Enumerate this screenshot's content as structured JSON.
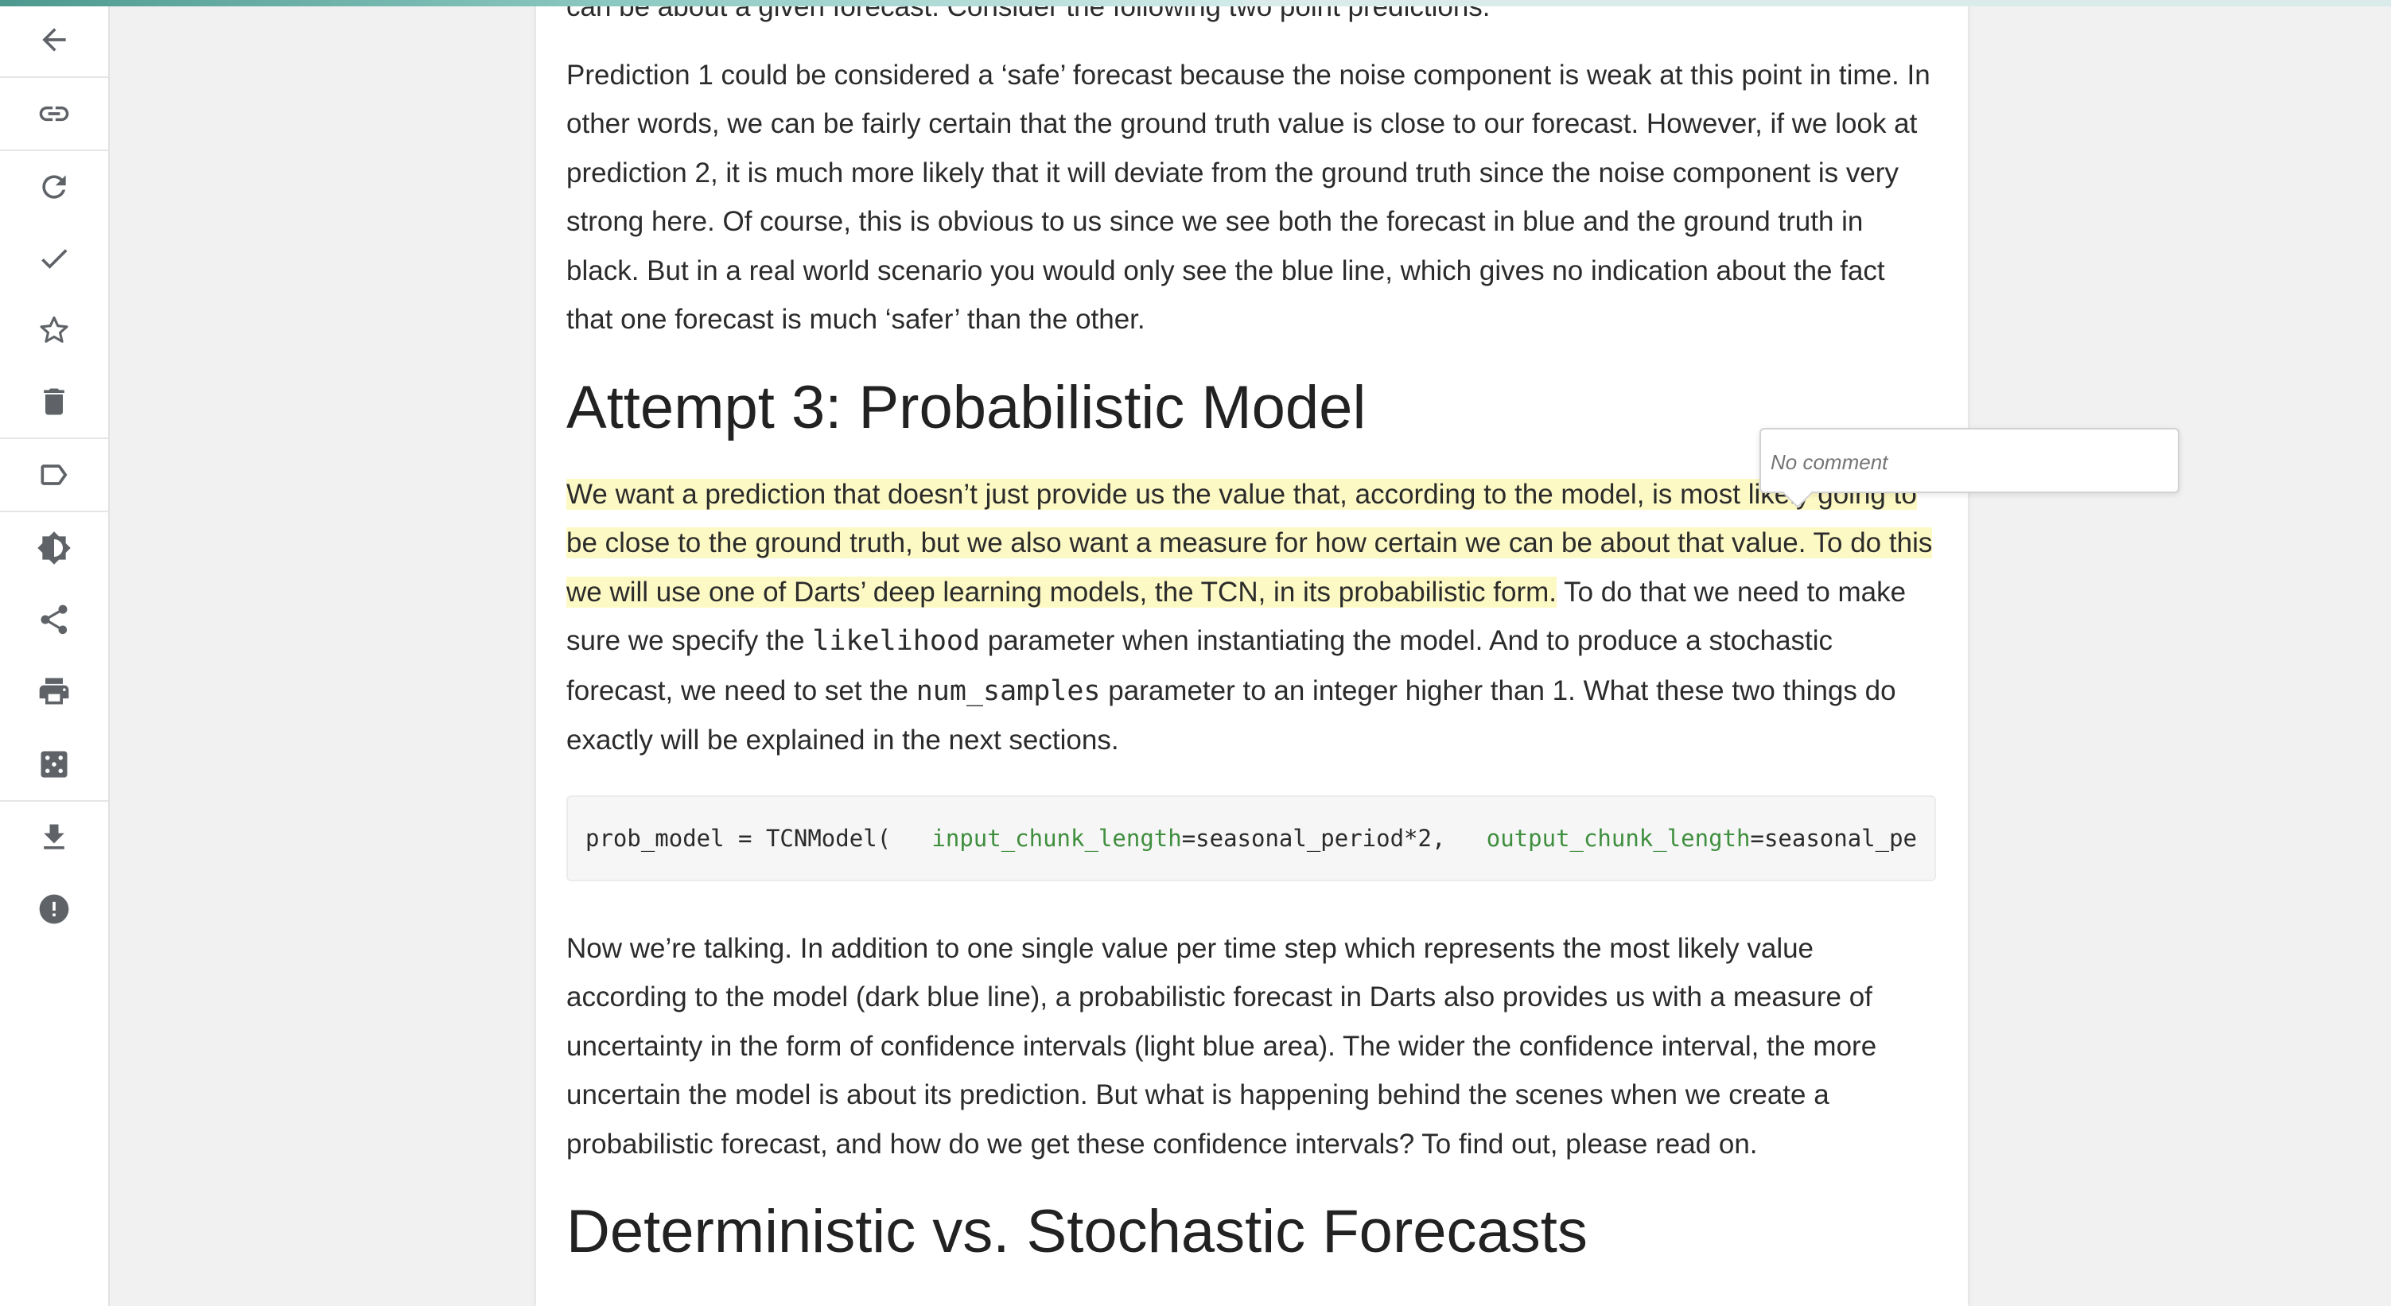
{
  "reading_progress": 0.52,
  "colors": {
    "highlight": "#fdf9c4",
    "code_keyword": "#3f8f3f",
    "progress_bar": "#4d9990",
    "icon": "#5f6368"
  },
  "toolbar": {
    "items": [
      {
        "name": "back",
        "icon": "arrow-left-icon"
      },
      {
        "name": "copy-link",
        "icon": "link-icon"
      },
      {
        "name": "refresh",
        "icon": "refresh-icon"
      },
      {
        "name": "mark-read",
        "icon": "check-icon"
      },
      {
        "name": "favorite",
        "icon": "star-outline-icon"
      },
      {
        "name": "delete",
        "icon": "trash-icon"
      },
      {
        "name": "tag",
        "icon": "label-icon"
      },
      {
        "name": "theme",
        "icon": "brightness-icon"
      },
      {
        "name": "share",
        "icon": "share-icon"
      },
      {
        "name": "print",
        "icon": "printer-icon"
      },
      {
        "name": "random",
        "icon": "dice-icon"
      },
      {
        "name": "download",
        "icon": "download-icon"
      },
      {
        "name": "report",
        "icon": "alert-circle-icon"
      }
    ]
  },
  "article": {
    "top_partial": "can be about a given forecast. Consider the following two point predictions.",
    "para1": "Prediction 1 could be considered a ‘safe’ forecast because the noise component is weak at this point in time. In other words, we can be fairly certain that the ground truth value is close to our forecast. However, if we look at prediction 2, it is much more likely that it will deviate from the ground truth since the noise component is very strong here. Of course, this is obvious to us since we see both the forecast in blue and the ground truth in black. But in a real world scenario you would only see the blue line, which gives no indication about the fact that one forecast is much ‘safer’ than the other.",
    "heading1": "Attempt 3: Probabilistic Model",
    "para2_highlight": "We want a prediction that doesn’t just provide us the value that, according to the model, is most likely going to be close to the ground truth, but we also want a measure for how certain we can be about that value. To do this we will use one of Darts’ deep learning models, the TCN, in its probabilistic form.",
    "para2_a": " To do that we need to make sure we specify the ",
    "para2_code1": "likelihood",
    "para2_b": " parameter when instantiating the model. And to produce a stochastic forecast, we need to set the ",
    "para2_code2": "num_samples",
    "para2_c": " parameter to an integer higher than 1. What these two things do exactly will be explained in the next sections.",
    "code": {
      "prefix": "prob_model = TCNModel(",
      "arg1_name": "input_chunk_length",
      "arg1_value": "=seasonal_period*2,",
      "arg2_name": "output_chunk_length",
      "arg2_value": "=seasonal_pe"
    },
    "para3": "Now we’re talking. In addition to one single value per time step which represents the most likely value according to the model (dark blue line), a probabilistic forecast in Darts also provides us with a measure of uncertainty in the form of confidence intervals (light blue area). The wider the confidence interval, the more uncertain the model is about its prediction. But what is happening behind the scenes when we create a probabilistic forecast, and how do we get these confidence intervals? To find out, please read on.",
    "heading2": "Deterministic vs. Stochastic Forecasts"
  },
  "annotation": {
    "comment_placeholder": "No comment"
  }
}
